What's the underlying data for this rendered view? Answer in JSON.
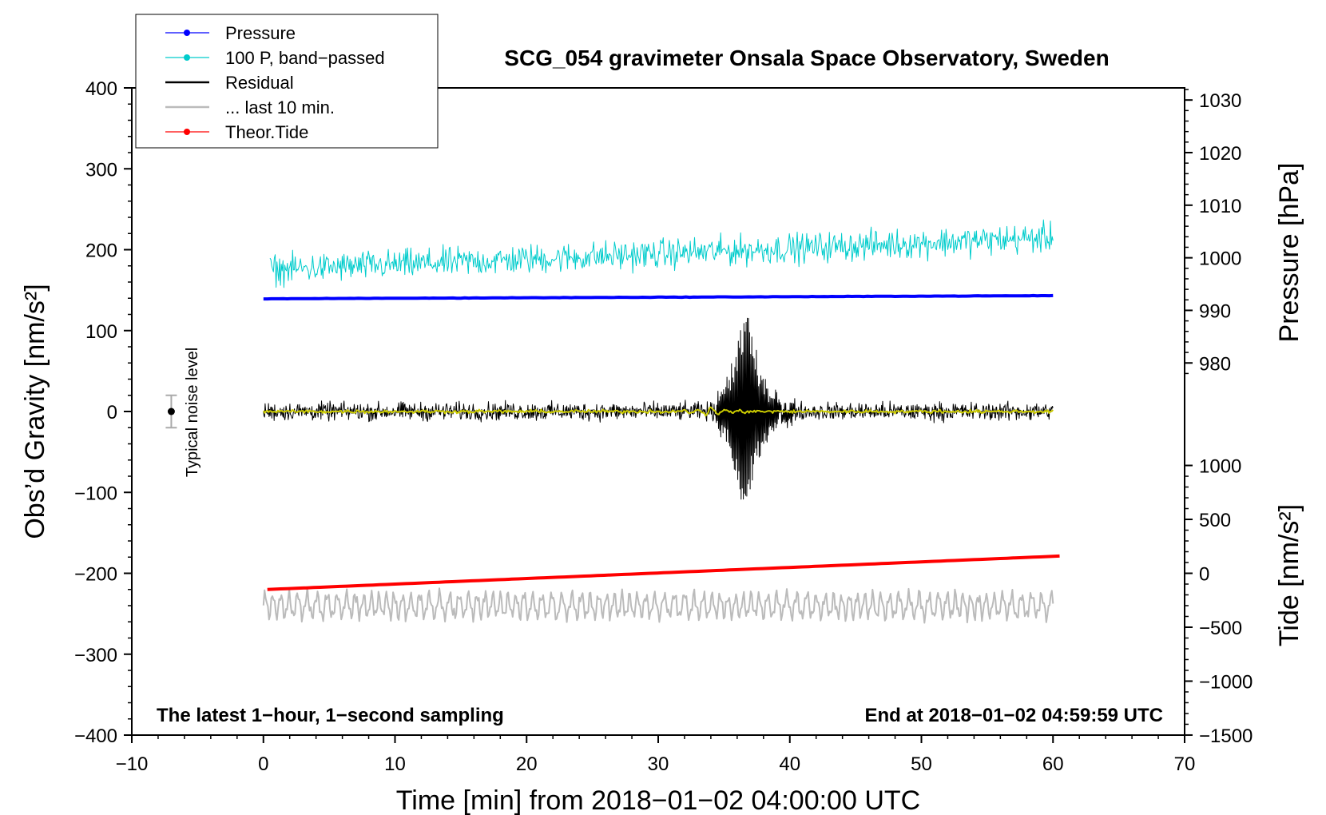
{
  "chart_data": {
    "type": "line",
    "title": "SCG_054 gravimeter Onsala Space Observatory, Sweden",
    "xlabel": "Time [min] from 2018−01−02 04:00:00 UTC",
    "ylabel_left": "Obs’d Gravity [nm/s²]",
    "ylabel_right_top": "Pressure [hPa]",
    "ylabel_right_bottom": "Tide [nm/s²]",
    "xlim": [
      -10,
      70
    ],
    "ylim_left": [
      -400,
      400
    ],
    "x_ticks": [
      "−10",
      "0",
      "10",
      "20",
      "30",
      "40",
      "50",
      "60",
      "70"
    ],
    "x_tick_values": [
      -10,
      0,
      10,
      20,
      30,
      40,
      50,
      60,
      70
    ],
    "y_ticks_left": [
      "400",
      "300",
      "200",
      "100",
      "0",
      "−100",
      "−200",
      "−300",
      "−400"
    ],
    "y_tick_values_left": [
      400,
      300,
      200,
      100,
      0,
      -100,
      -200,
      -300,
      -400
    ],
    "pressure_axis": {
      "ticks": [
        "1030",
        "1020",
        "1010",
        "1000",
        "990",
        "980"
      ],
      "tick_values": [
        1030,
        1020,
        1010,
        1000,
        990,
        980
      ],
      "gravity_at_980": 60,
      "gravity_per_hpa": 6.5
    },
    "tide_axis": {
      "ticks": [
        "1000",
        "500",
        "0",
        "−500",
        "−1000",
        "−1500"
      ],
      "tick_values": [
        1000,
        500,
        0,
        -500,
        -1000,
        -1500
      ],
      "gravity_at_0": -200,
      "gravity_per_unit": 0.1333
    },
    "legend": [
      {
        "label": "Pressure",
        "color": "#0000ff",
        "marker": "dot"
      },
      {
        "label": "100 P, band−passed",
        "color": "#00cccc",
        "marker": "dot"
      },
      {
        "label": "Residual",
        "color": "#000000",
        "marker": "none"
      },
      {
        "label": "... last 10 min.",
        "color": "#bbbbbb",
        "marker": "none"
      },
      {
        "label": "Theor.Tide",
        "color": "#ff0000",
        "marker": "dot"
      }
    ],
    "series": [
      {
        "name": "Pressure",
        "color": "#0000ff",
        "x_range": [
          0,
          60
        ],
        "pressure_hpa_start": 992.2,
        "pressure_hpa_end": 992.8
      },
      {
        "name": "100 P, band−passed",
        "color": "#00cccc",
        "x_range": [
          0.5,
          60
        ],
        "center_start": 175,
        "center_end": 215,
        "amplitude": 35
      },
      {
        "name": "Residual",
        "color": "#000000",
        "x_range": [
          0,
          60
        ],
        "center": 0,
        "amplitude": 18,
        "event_minute": 36.6,
        "event_peak": 145,
        "event_trough": -150
      },
      {
        "name": "Residual (smoothed)",
        "color": "#cccc00",
        "x_range": [
          0,
          60
        ],
        "center": 0,
        "amplitude": 3
      },
      {
        "name": "... last 10 min.",
        "color": "#bbbbbb",
        "x_range": [
          0,
          60
        ],
        "center": -240,
        "amplitude": 18
      },
      {
        "name": "Theor.Tide",
        "color": "#ff0000",
        "x_range": [
          0.3,
          60.5
        ],
        "tide_start": -150,
        "tide_end": 160
      }
    ],
    "noise_level": {
      "label": "Typical noise level",
      "x": -7,
      "value": 0,
      "err": 20
    },
    "note_left": "The latest 1−hour, 1−second sampling",
    "note_right": "End at 2018−01−02 04:59:59 UTC"
  }
}
